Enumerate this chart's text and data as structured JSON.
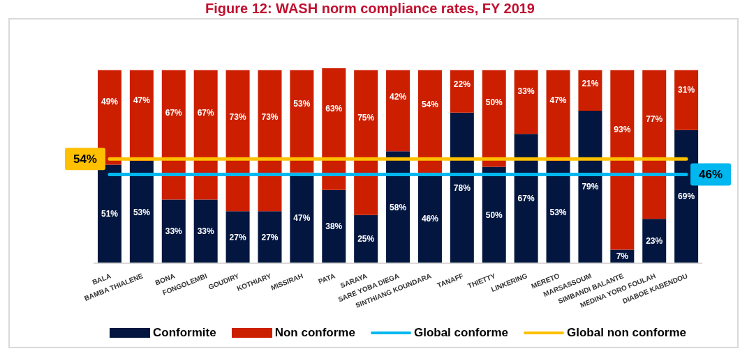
{
  "chart_data": {
    "type": "bar",
    "title": "Figure 12: WASH norm compliance rates, FY 2019",
    "stacked": true,
    "categories": [
      "BALA",
      "BAMBA THIALENE",
      "BONA",
      "FONGOLEMBI",
      "GOUDIRY",
      "KOTHIARY",
      "MISSIRAH",
      "PATA",
      "SARAYA",
      "SARE YOBA DIEGA",
      "SINTHIANG KOUNDARA",
      "TANAFF",
      "THIETTY",
      "LINKERING",
      "MERETO",
      "MARSASSOUM",
      "SIMBANDI BALANTE",
      "MEDINA YORO FOULAH",
      "DIABOE KABENDOU"
    ],
    "series": [
      {
        "name": "Conformite",
        "color": "#02163f",
        "values": [
          51,
          53,
          33,
          33,
          27,
          27,
          47,
          38,
          25,
          58,
          46,
          78,
          50,
          67,
          53,
          79,
          7,
          23,
          69
        ],
        "value_labels": [
          "51%",
          "53%",
          "33%",
          "33%",
          "27%",
          "27%",
          "47%",
          "38%",
          "25%",
          "58%",
          "46%",
          "78%",
          "50%",
          "67%",
          "53%",
          "79%",
          "7%",
          "23%",
          "69%"
        ]
      },
      {
        "name": "Non conforme",
        "color": "#cc1f00",
        "values": [
          49,
          47,
          67,
          67,
          73,
          73,
          53,
          63,
          75,
          42,
          54,
          22,
          50,
          33,
          47,
          21,
          93,
          77,
          31
        ],
        "value_labels": [
          "49%",
          "47%",
          "67%",
          "67%",
          "73%",
          "73%",
          "53%",
          "63%",
          "75%",
          "42%",
          "54%",
          "22%",
          "50%",
          "33%",
          "47%",
          "21%",
          "93%",
          "77%",
          "31%"
        ]
      },
      {
        "name": "Global conforme",
        "type": "line",
        "color": "#00b7ef",
        "values": [
          46,
          46,
          46,
          46,
          46,
          46,
          46,
          46,
          46,
          46,
          46,
          46,
          46,
          46,
          46,
          46,
          46,
          46,
          46
        ],
        "value_labels": [
          null,
          null,
          null,
          null,
          null,
          null,
          null,
          null,
          null,
          null,
          null,
          null,
          null,
          null,
          null,
          null,
          null,
          null,
          "46%"
        ]
      },
      {
        "name": "Global non conforme",
        "type": "line",
        "color": "#ffc000",
        "values": [
          54,
          54,
          54,
          54,
          54,
          54,
          54,
          54,
          54,
          54,
          54,
          54,
          54,
          54,
          54,
          54,
          54,
          54,
          54
        ],
        "value_labels": [
          "54%",
          null,
          null,
          null,
          null,
          null,
          null,
          null,
          null,
          null,
          null,
          null,
          null,
          null,
          null,
          null,
          null,
          null,
          null
        ]
      }
    ],
    "tick_labels": "x",
    "legend": "bottom",
    "marker": "none"
  }
}
